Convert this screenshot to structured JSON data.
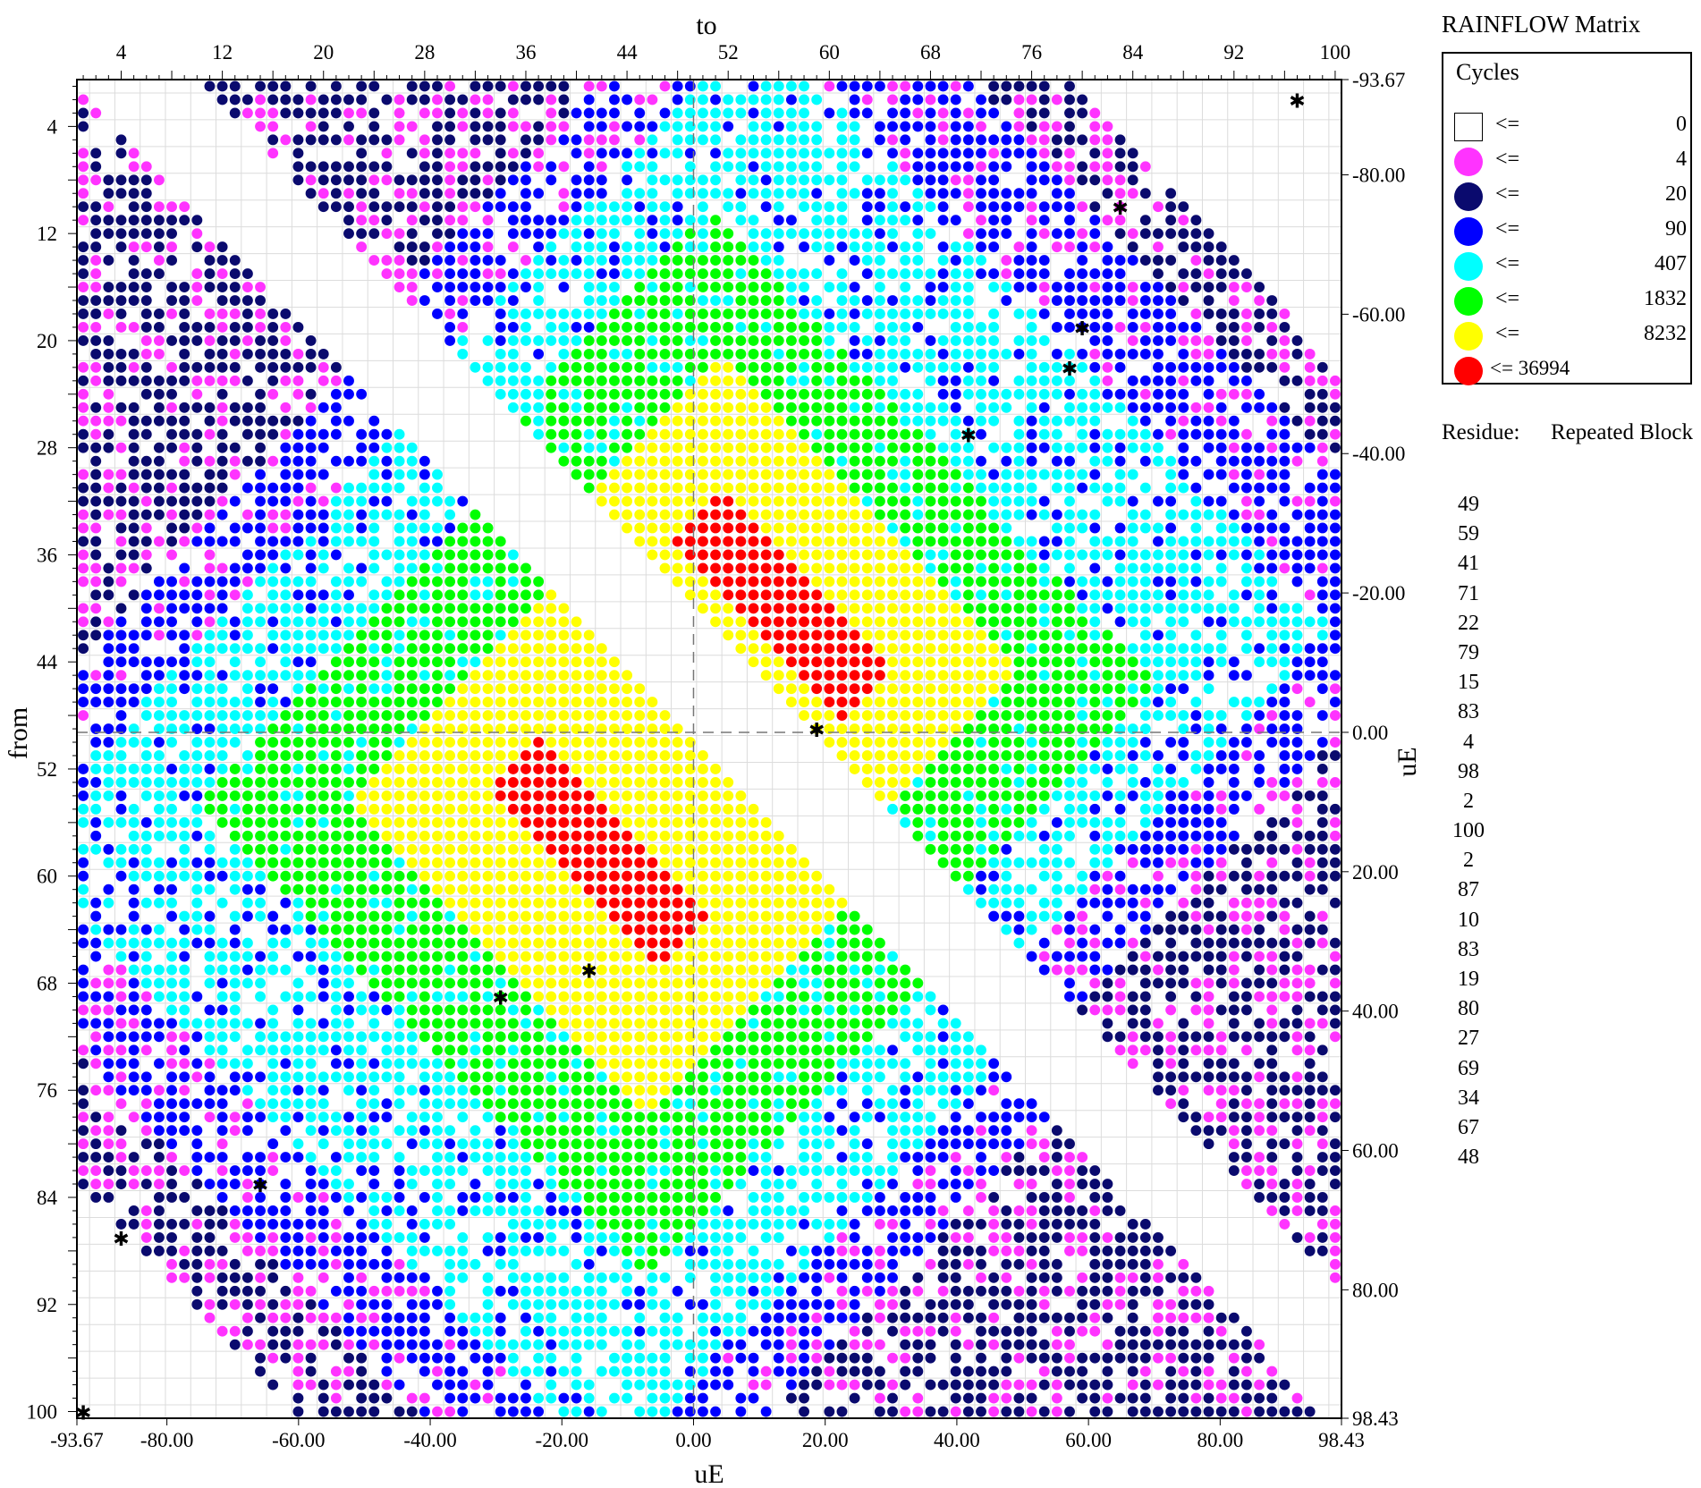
{
  "chart_data": {
    "type": "scatter",
    "subtype": "rainflow-matrix",
    "legend_title": "RAINFLOW Matrix",
    "legend_heading": "Cycles",
    "legend": [
      {
        "op": "<=",
        "value": "0",
        "color": "#ffffff"
      },
      {
        "op": "<=",
        "value": "4",
        "color": "#ff33ff"
      },
      {
        "op": "<=",
        "value": "20",
        "color": "#0a0a6e"
      },
      {
        "op": "<=",
        "value": "90",
        "color": "#0000ff"
      },
      {
        "op": "<=",
        "value": "407",
        "color": "#00ffff"
      },
      {
        "op": "<=",
        "value": "1832",
        "color": "#00ff00"
      },
      {
        "op": "<=",
        "value": "8232",
        "color": "#ffff00"
      },
      {
        "op": "<= 36994",
        "value": "",
        "color": "#ff0000"
      }
    ],
    "top_axis_title": "to",
    "left_axis_title": "from",
    "bottom_axis_title": "uE",
    "right_axis_title": "uE",
    "bin_range": [
      1,
      100
    ],
    "x_ticks_top": [
      "4",
      "12",
      "20",
      "28",
      "36",
      "44",
      "52",
      "60",
      "68",
      "76",
      "84",
      "92",
      "100"
    ],
    "y_ticks_left": [
      "4",
      "12",
      "20",
      "28",
      "36",
      "44",
      "52",
      "60",
      "68",
      "76",
      "84",
      "92",
      "100"
    ],
    "x_ticks_bottom": [
      "-93.67",
      "-80.00",
      "-60.00",
      "-40.00",
      "-20.00",
      "0.00",
      "20.00",
      "40.00",
      "60.00",
      "80.00",
      "98.43"
    ],
    "y_ticks_right": [
      "-93.67",
      "-80.00",
      "-60.00",
      "-40.00",
      "-20.00",
      "0.00",
      "20.00",
      "40.00",
      "60.00",
      "80.00",
      "98.43"
    ],
    "uE_range": [
      -93.67,
      98.43
    ],
    "zero_lines": true,
    "residue_label": "Residue:",
    "repeated_label": "Repeated Block",
    "residue": [
      "49",
      "59",
      "41",
      "71",
      "22",
      "79",
      "15",
      "83",
      "4",
      "98",
      "2",
      "100",
      "2",
      "87",
      "10",
      "83",
      "19",
      "80",
      "27",
      "69",
      "34",
      "67",
      "48"
    ],
    "residue_markers": [
      {
        "to": 97,
        "from": 2
      },
      {
        "to": 83,
        "from": 10
      },
      {
        "to": 80,
        "from": 19
      },
      {
        "to": 79,
        "from": 22
      },
      {
        "to": 71,
        "from": 27
      },
      {
        "to": 59,
        "from": 49
      },
      {
        "to": 41,
        "from": 67
      },
      {
        "to": 34,
        "from": 69
      },
      {
        "to": 15,
        "from": 83
      },
      {
        "to": 4,
        "from": 87
      },
      {
        "to": 1,
        "from": 100
      }
    ]
  }
}
